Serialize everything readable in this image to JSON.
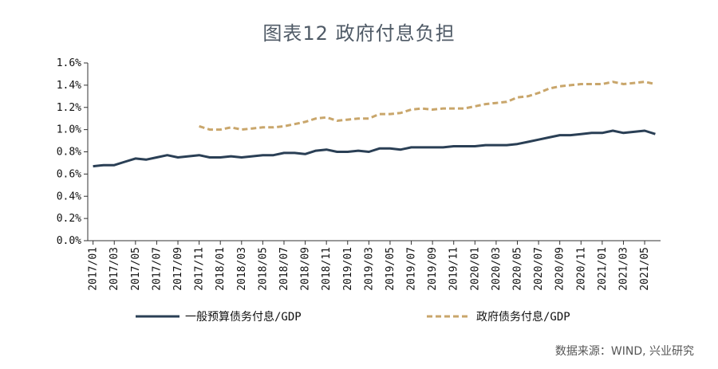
{
  "title": "图表12 政府付息负担",
  "source": "数据来源：WIND, 兴业研究",
  "chart_data": {
    "type": "line",
    "ylim": [
      0,
      1.6
    ],
    "yticks": [
      "0.0%",
      "0.2%",
      "0.4%",
      "0.6%",
      "0.8%",
      "1.0%",
      "1.2%",
      "1.4%",
      "1.6%"
    ],
    "x": [
      "2017/01",
      "2017/02",
      "2017/03",
      "2017/04",
      "2017/05",
      "2017/06",
      "2017/07",
      "2017/08",
      "2017/09",
      "2017/10",
      "2017/11",
      "2017/12",
      "2018/01",
      "2018/02",
      "2018/03",
      "2018/04",
      "2018/05",
      "2018/06",
      "2018/07",
      "2018/08",
      "2018/09",
      "2018/10",
      "2018/11",
      "2018/12",
      "2019/01",
      "2019/02",
      "2019/03",
      "2019/04",
      "2019/05",
      "2019/06",
      "2019/07",
      "2019/08",
      "2019/09",
      "2019/10",
      "2019/11",
      "2019/12",
      "2020/01",
      "2020/02",
      "2020/03",
      "2020/04",
      "2020/05",
      "2020/06",
      "2020/07",
      "2020/08",
      "2020/09",
      "2020/10",
      "2020/11",
      "2020/12",
      "2021/01",
      "2021/02",
      "2021/03",
      "2021/04",
      "2021/05",
      "2021/06"
    ],
    "xtick_labels": [
      "2017/01",
      "2017/03",
      "2017/05",
      "2017/07",
      "2017/09",
      "2017/11",
      "2018/01",
      "2018/03",
      "2018/05",
      "2018/07",
      "2018/09",
      "2018/11",
      "2019/01",
      "2019/03",
      "2019/05",
      "2019/07",
      "2019/09",
      "2019/11",
      "2020/01",
      "2020/03",
      "2020/05",
      "2020/07",
      "2020/09",
      "2020/11",
      "2021/01",
      "2021/03",
      "2021/05"
    ],
    "series": [
      {
        "name": "一般预算债务付息/GDP",
        "color": "#2a3f55",
        "dash": "solid",
        "values": [
          0.67,
          0.68,
          0.68,
          0.71,
          0.74,
          0.73,
          0.75,
          0.77,
          0.75,
          0.76,
          0.77,
          0.75,
          0.75,
          0.76,
          0.75,
          0.76,
          0.77,
          0.77,
          0.79,
          0.79,
          0.78,
          0.81,
          0.82,
          0.8,
          0.8,
          0.81,
          0.8,
          0.83,
          0.83,
          0.82,
          0.84,
          0.84,
          0.84,
          0.84,
          0.85,
          0.85,
          0.85,
          0.86,
          0.86,
          0.86,
          0.87,
          0.89,
          0.91,
          0.93,
          0.95,
          0.95,
          0.96,
          0.97,
          0.97,
          0.99,
          0.97,
          0.98,
          0.99,
          0.96
        ]
      },
      {
        "name": "政府债务付息/GDP",
        "color": "#c9a66b",
        "dash": "dashed",
        "values": [
          null,
          null,
          null,
          null,
          null,
          null,
          null,
          null,
          null,
          null,
          1.03,
          1.0,
          1.0,
          1.02,
          1.0,
          1.01,
          1.02,
          1.02,
          1.03,
          1.05,
          1.07,
          1.1,
          1.11,
          1.08,
          1.09,
          1.1,
          1.1,
          1.14,
          1.14,
          1.15,
          1.18,
          1.19,
          1.18,
          1.19,
          1.19,
          1.19,
          1.21,
          1.23,
          1.24,
          1.25,
          1.29,
          1.3,
          1.33,
          1.37,
          1.39,
          1.4,
          1.41,
          1.41,
          1.41,
          1.43,
          1.41,
          1.42,
          1.43,
          1.41
        ]
      }
    ]
  }
}
